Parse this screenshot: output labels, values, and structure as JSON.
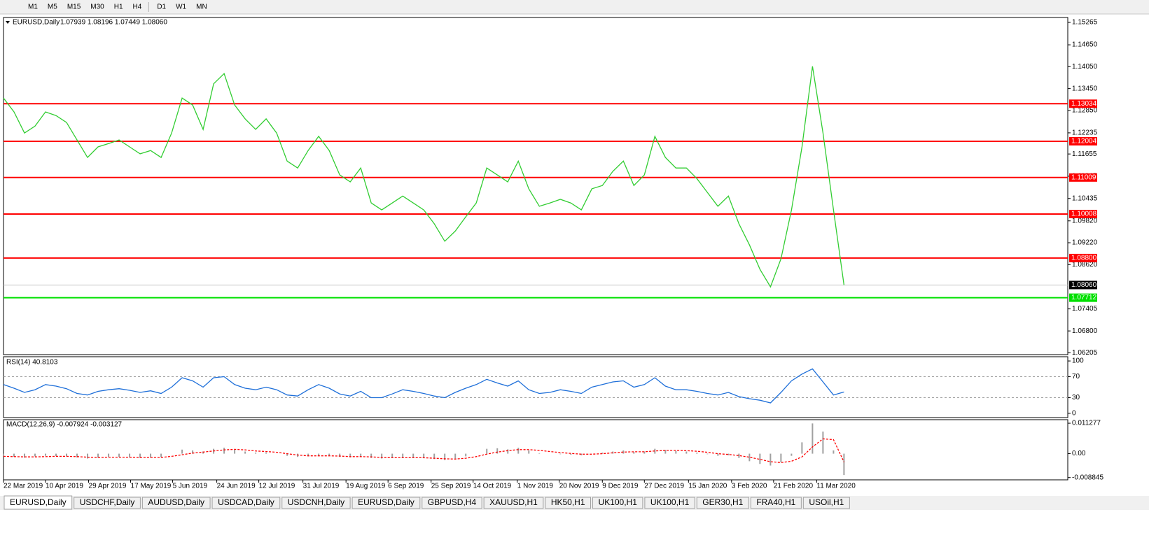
{
  "toolbar": {
    "timeframes": [
      "M1",
      "M5",
      "M15",
      "M30",
      "H1",
      "H4",
      "D1",
      "W1",
      "MN"
    ]
  },
  "chart_data": [
    {
      "type": "line",
      "title": "EURUSD,Daily",
      "quote": "1.07939 1.08196 1.07449 1.08060",
      "color": "#32cd32",
      "values": [
        1.1319,
        1.1281,
        1.1223,
        1.1242,
        1.1281,
        1.1271,
        1.1252,
        1.1204,
        1.1156,
        1.1185,
        1.1194,
        1.1204,
        1.1185,
        1.1166,
        1.1175,
        1.1156,
        1.1223,
        1.1319,
        1.13,
        1.1233,
        1.1358,
        1.1386,
        1.13,
        1.1262,
        1.1233,
        1.1262,
        1.1223,
        1.1146,
        1.1127,
        1.1175,
        1.1214,
        1.1175,
        1.1108,
        1.1089,
        1.1127,
        1.1031,
        1.1012,
        1.1031,
        1.105,
        1.1031,
        1.1012,
        1.0974,
        1.0926,
        1.0954,
        1.0993,
        1.1031,
        1.1127,
        1.1108,
        1.1089,
        1.1146,
        1.107,
        1.1022,
        1.1031,
        1.1041,
        1.1031,
        1.1012,
        1.107,
        1.1079,
        1.1118,
        1.1146,
        1.1079,
        1.1108,
        1.1214,
        1.1156,
        1.1127,
        1.1127,
        1.1098,
        1.106,
        1.1022,
        1.105,
        1.0974,
        1.0916,
        1.0849,
        1.0801,
        1.0878,
        1.1012,
        1.1185,
        1.1406,
        1.1223,
        1.1012,
        1.0806
      ],
      "xlim": [
        0,
        101.3
      ],
      "ylim": [
        1.0615,
        1.154
      ],
      "yticks": [
        {
          "value": 1.15265,
          "label": "1.15265"
        },
        {
          "value": 1.1465,
          "label": "1.14650"
        },
        {
          "value": 1.1405,
          "label": "1.14050"
        },
        {
          "value": 1.1345,
          "label": "1.13450"
        },
        {
          "value": 1.1285,
          "label": "1.12850"
        },
        {
          "value": 1.12235,
          "label": "1.12235"
        },
        {
          "value": 1.11655,
          "label": "1.11655"
        },
        {
          "value": 1.11045,
          "label": "1.11045"
        },
        {
          "value": 1.10435,
          "label": "1.10435"
        },
        {
          "value": 1.0982,
          "label": "1.09820"
        },
        {
          "value": 1.0922,
          "label": "1.09220"
        },
        {
          "value": 1.0862,
          "label": "1.08620"
        },
        {
          "value": 1.07405,
          "label": "1.07405"
        },
        {
          "value": 1.068,
          "label": "1.06800"
        },
        {
          "value": 1.06205,
          "label": "1.06205"
        }
      ],
      "levels": [
        {
          "value": 1.13034,
          "label": "1.13034",
          "color": "#ff0000"
        },
        {
          "value": 1.12004,
          "label": "1.12004",
          "color": "#ff0000"
        },
        {
          "value": 1.11009,
          "label": "1.11009",
          "color": "#ff0000"
        },
        {
          "value": 1.10008,
          "label": "1.10008",
          "color": "#ff0000"
        },
        {
          "value": 1.088,
          "label": "1.08800",
          "color": "#ff0000"
        },
        {
          "value": 1.07712,
          "label": "1.07712",
          "color": "#00e000"
        }
      ],
      "last": {
        "value": 1.0806,
        "label": "1.08060"
      }
    },
    {
      "type": "line",
      "title": "RSI(14) 40.8103",
      "color": "#1e6fd9",
      "values": [
        55,
        48,
        40,
        45,
        55,
        52,
        47,
        38,
        35,
        42,
        45,
        47,
        44,
        40,
        43,
        38,
        50,
        68,
        62,
        50,
        68,
        70,
        55,
        48,
        45,
        50,
        45,
        35,
        33,
        45,
        55,
        48,
        37,
        33,
        42,
        30,
        30,
        37,
        45,
        42,
        38,
        33,
        30,
        40,
        48,
        55,
        65,
        58,
        52,
        62,
        45,
        38,
        40,
        45,
        42,
        38,
        50,
        55,
        60,
        62,
        50,
        55,
        68,
        52,
        45,
        45,
        42,
        38,
        35,
        40,
        32,
        28,
        25,
        20,
        40,
        62,
        75,
        85,
        60,
        35,
        40.8103
      ],
      "xlim": [
        0,
        101.3
      ],
      "ylim": [
        -8.1,
        108.1
      ],
      "yticks": [
        100,
        70,
        30,
        0
      ]
    },
    {
      "type": "macd",
      "title": "MACD(12,26,9) -0.007924 -0.003127",
      "color": "#a0a0a0",
      "signal_color": "#ff0000",
      "values": [
        -0.001,
        -0.0012,
        -0.0015,
        -0.001,
        -0.0008,
        -0.0009,
        -0.001,
        -0.0014,
        -0.0018,
        -0.0015,
        -0.0012,
        -0.0012,
        -0.0014,
        -0.0016,
        -0.0015,
        -0.0013,
        0,
        0.0015,
        0.0012,
        0.0008,
        0.0018,
        0.0022,
        0.0015,
        0.0008,
        0.0004,
        0.0005,
        0,
        -0.0008,
        -0.0012,
        -0.001,
        -0.0006,
        -0.0008,
        -0.0012,
        -0.0014,
        -0.001,
        -0.0016,
        -0.0018,
        -0.0016,
        -0.0014,
        -0.0015,
        -0.0017,
        -0.002,
        -0.0024,
        -0.0018,
        -0.001,
        0,
        0.0018,
        0.002,
        0.0016,
        0.0022,
        0.0012,
        0.0002,
        0,
        -0.0002,
        -0.0004,
        -0.0006,
        0,
        0.0004,
        0.0008,
        0.0012,
        0.0006,
        0.0008,
        0.0018,
        0.0014,
        0.001,
        0.0008,
        0.0004,
        -0.0002,
        -0.0008,
        -0.0006,
        -0.0016,
        -0.0028,
        -0.0038,
        -0.0044,
        -0.0032,
        -0.0008,
        0.0042,
        0.0112,
        0.0082,
        0.0012,
        -0.007924
      ],
      "signal": [
        -0.001,
        -0.0011,
        -0.0012,
        -0.0012,
        -0.0011,
        -0.001,
        -0.001,
        -0.0011,
        -0.0013,
        -0.0014,
        -0.0013,
        -0.0013,
        -0.0013,
        -0.0014,
        -0.0014,
        -0.0014,
        -0.001,
        -0.0004,
        0.0002,
        0.0006,
        0.001,
        0.0014,
        0.0016,
        0.0014,
        0.001,
        0.0008,
        0.0005,
        0,
        -0.0005,
        -0.0008,
        -0.0008,
        -0.0008,
        -0.0009,
        -0.0011,
        -0.0011,
        -0.0012,
        -0.0014,
        -0.0015,
        -0.0015,
        -0.0015,
        -0.0015,
        -0.0017,
        -0.0019,
        -0.002,
        -0.0017,
        -0.0011,
        -0.0002,
        0.0006,
        0.0011,
        0.0015,
        0.0015,
        0.0012,
        0.0008,
        0.0004,
        0.0001,
        -0.0002,
        -0.0002,
        0,
        0.0003,
        0.0006,
        0.0007,
        0.0007,
        0.001,
        0.0012,
        0.0012,
        0.0011,
        0.0009,
        0.0005,
        0,
        -0.0003,
        -0.0007,
        -0.0013,
        -0.0021,
        -0.003,
        -0.0033,
        -0.0028,
        -0.0012,
        0.0025,
        0.0055,
        0.0052,
        -0.003127
      ],
      "xlim": [
        0,
        101.3
      ],
      "ylim": [
        -0.0097,
        0.01259
      ],
      "yticks": [
        0.011277,
        {
          "value": 0,
          "label": "0.00"
        },
        -0.008845
      ],
      "xticks": [
        {
          "value": 0,
          "label": "22 Mar 2019"
        },
        {
          "value": 4,
          "label": "10 Apr 2019"
        },
        {
          "value": 8.1,
          "label": "29 Apr 2019"
        },
        {
          "value": 12.1,
          "label": "17 May 2019"
        },
        {
          "value": 16.1,
          "label": "5 Jun 2019"
        },
        {
          "value": 20.3,
          "label": "24 Jun 2019"
        },
        {
          "value": 24.3,
          "label": "12 Jul 2019"
        },
        {
          "value": 28.5,
          "label": "31 Jul 2019"
        },
        {
          "value": 32.6,
          "label": "19 Aug 2019"
        },
        {
          "value": 36.6,
          "label": "6 Sep 2019"
        },
        {
          "value": 40.7,
          "label": "25 Sep 2019"
        },
        {
          "value": 44.7,
          "label": "14 Oct 2019"
        },
        {
          "value": 48.9,
          "label": "1 Nov 2019"
        },
        {
          "value": 52.9,
          "label": "20 Nov 2019"
        },
        {
          "value": 57,
          "label": "9 Dec 2019"
        },
        {
          "value": 61,
          "label": "27 Dec 2019"
        },
        {
          "value": 65.2,
          "label": "15 Jan 2020"
        },
        {
          "value": 69.3,
          "label": "3 Feb 2020"
        },
        {
          "value": 73.3,
          "label": "21 Feb 2020"
        },
        {
          "value": 77.4,
          "label": "11 Mar 2020"
        }
      ]
    }
  ],
  "tabs": [
    {
      "label": "EURUSD,Daily",
      "active": true
    },
    {
      "label": "USDCHF,Daily"
    },
    {
      "label": "AUDUSD,Daily"
    },
    {
      "label": "USDCAD,Daily"
    },
    {
      "label": "USDCNH,Daily"
    },
    {
      "label": "EURUSD,Daily"
    },
    {
      "label": "GBPUSD,H4"
    },
    {
      "label": "XAUUSD,H1"
    },
    {
      "label": "HK50,H1"
    },
    {
      "label": "UK100,H1"
    },
    {
      "label": "UK100,H1"
    },
    {
      "label": "GER30,H1"
    },
    {
      "label": "FRA40,H1"
    },
    {
      "label": "USOil,H1"
    }
  ]
}
